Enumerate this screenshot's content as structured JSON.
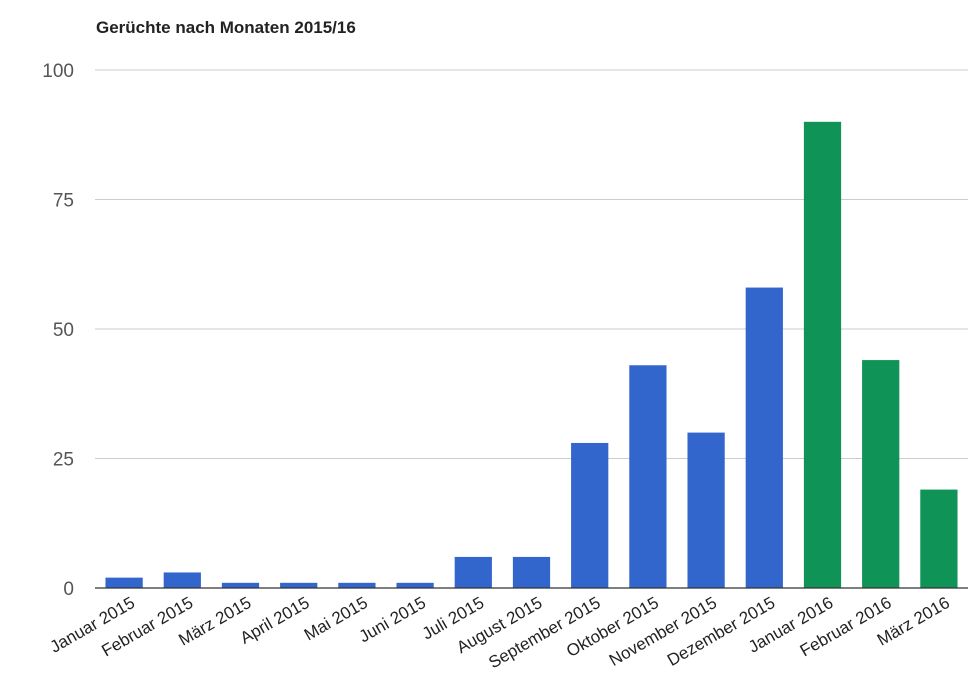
{
  "chart_data": {
    "type": "bar",
    "title": "Gerüchte nach Monaten 2015/16",
    "xlabel": "",
    "ylabel": "",
    "ylim": [
      0,
      100
    ],
    "yticks": [
      0,
      25,
      50,
      75,
      100
    ],
    "grid": true,
    "legend": "none",
    "categories": [
      "Januar 2015",
      "Februar 2015",
      "März 2015",
      "April 2015",
      "Mai 2015",
      "Juni 2015",
      "Juli 2015",
      "August 2015",
      "September 2015",
      "Oktober 2015",
      "November 2015",
      "Dezember 2015",
      "Januar 2016",
      "Februar 2016",
      "März 2016"
    ],
    "values": [
      2,
      3,
      1,
      1,
      1,
      1,
      6,
      6,
      28,
      43,
      30,
      58,
      90,
      44,
      19
    ],
    "bar_colors": [
      "#3366cc",
      "#3366cc",
      "#3366cc",
      "#3366cc",
      "#3366cc",
      "#3366cc",
      "#3366cc",
      "#3366cc",
      "#3366cc",
      "#3366cc",
      "#3366cc",
      "#3366cc",
      "#109357",
      "#109357",
      "#109357"
    ]
  }
}
